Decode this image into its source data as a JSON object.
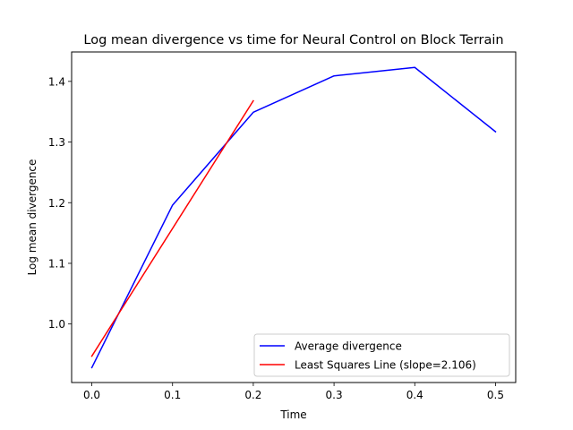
{
  "chart_data": {
    "type": "line",
    "title": "Log mean divergence vs time for Neural Control on Block Terrain",
    "xlabel": "Time",
    "ylabel": "Log mean divergence",
    "xlim": [
      -0.025,
      0.525
    ],
    "ylim": [
      0.9035,
      1.4485
    ],
    "xticks": [
      0.0,
      0.1,
      0.2,
      0.3,
      0.4,
      0.5
    ],
    "xtick_labels": [
      "0.0",
      "0.1",
      "0.2",
      "0.3",
      "0.4",
      "0.5"
    ],
    "yticks": [
      1.0,
      1.1,
      1.2,
      1.3,
      1.4
    ],
    "ytick_labels": [
      "1.0",
      "1.1",
      "1.2",
      "1.3",
      "1.4"
    ],
    "grid": false,
    "legend_position": "lower-right",
    "series": [
      {
        "name": "Average divergence",
        "color": "#0000ff",
        "x": [
          0.0,
          0.1,
          0.2,
          0.3,
          0.4,
          0.5
        ],
        "y": [
          0.928,
          1.196,
          1.349,
          1.409,
          1.423,
          1.317
        ]
      },
      {
        "name": "Least Squares Line (slope=2.106)",
        "color": "#ff0000",
        "x": [
          0.0,
          0.2
        ],
        "y": [
          0.947,
          1.368
        ]
      }
    ]
  }
}
